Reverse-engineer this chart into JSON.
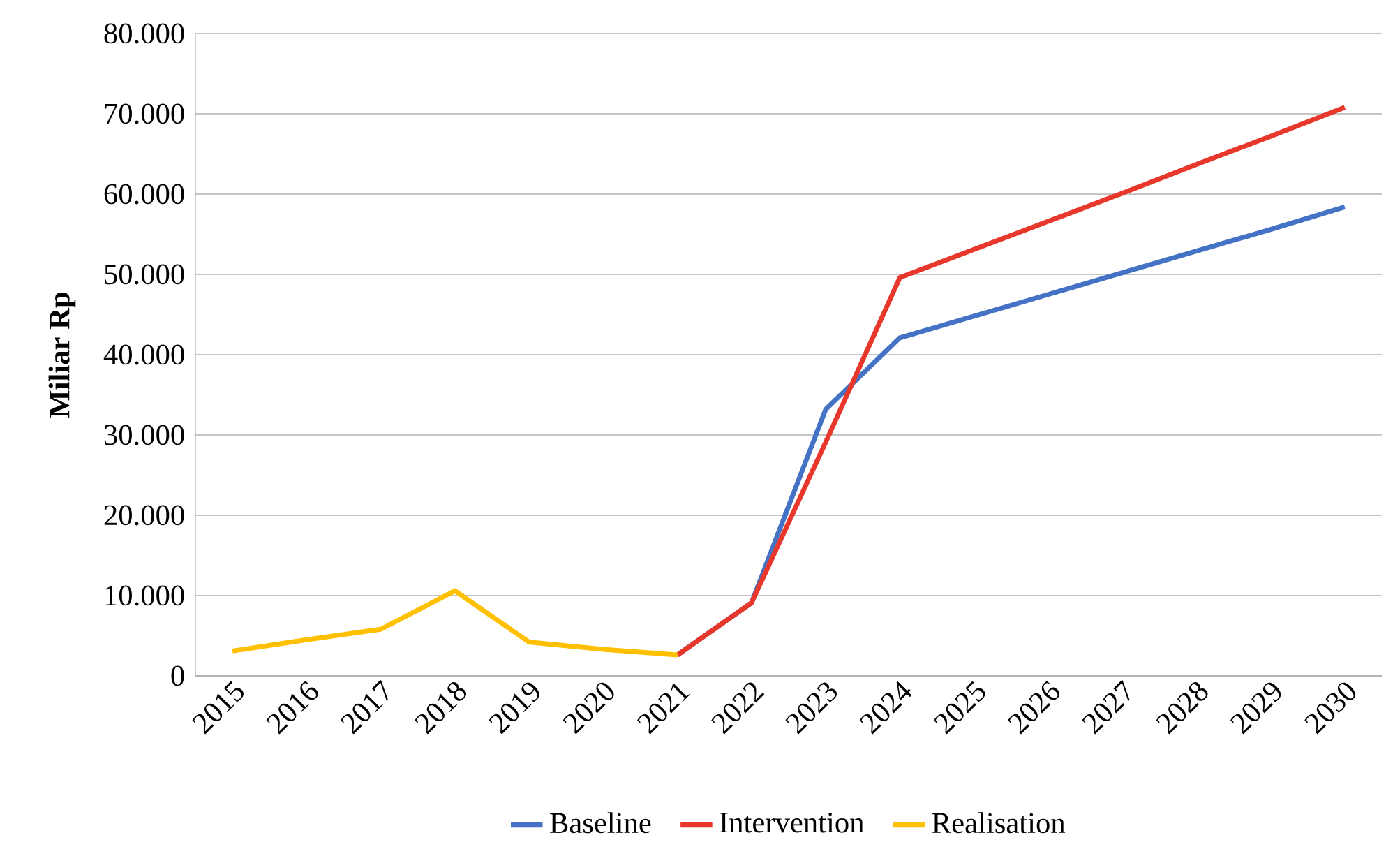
{
  "chart_data": {
    "type": "line",
    "ylabel": "Miliar Rp",
    "categories": [
      "2015",
      "2016",
      "2017",
      "2018",
      "2019",
      "2020",
      "2021",
      "2022",
      "2023",
      "2024",
      "2025",
      "2026",
      "2027",
      "2028",
      "2029",
      "2030"
    ],
    "series": [
      {
        "name": "Baseline",
        "color": "#4472c4",
        "values": [
          null,
          null,
          null,
          null,
          null,
          null,
          2600,
          9100,
          33200,
          42100,
          44800,
          47500,
          50200,
          52900,
          55600,
          58400
        ]
      },
      {
        "name": "Intervention",
        "color": "#e8382b",
        "values": [
          null,
          null,
          null,
          null,
          null,
          null,
          2600,
          9100,
          29100,
          49600,
          53100,
          56600,
          60100,
          63700,
          67200,
          70800
        ]
      },
      {
        "name": "Realisation",
        "color": "#ffc000",
        "values": [
          3100,
          4500,
          5800,
          10600,
          4200,
          3300,
          2600,
          null,
          null,
          null,
          null,
          null,
          null,
          null,
          null,
          null
        ]
      }
    ],
    "ylim": [
      0,
      80000
    ],
    "yticks": [
      0,
      {
        "value": 10000,
        "label": "10.000"
      },
      {
        "value": 20000,
        "label": "20.000"
      },
      {
        "value": 30000,
        "label": "30.000"
      },
      {
        "value": 40000,
        "label": "40.000"
      },
      {
        "value": 50000,
        "label": "50.000"
      },
      {
        "value": 60000,
        "label": "60.000"
      },
      {
        "value": 70000,
        "label": "70.000"
      },
      {
        "value": 80000,
        "label": "80.000"
      }
    ],
    "grid": "y",
    "legend": "bottom",
    "marker": "none",
    "line_style": "solid"
  }
}
